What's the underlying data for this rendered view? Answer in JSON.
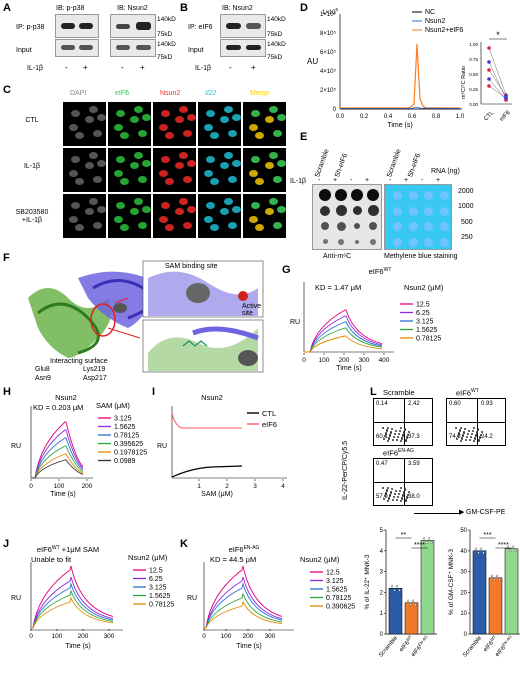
{
  "panels": [
    "A",
    "B",
    "C",
    "D",
    "E",
    "F",
    "G",
    "H",
    "I",
    "J",
    "K",
    "L"
  ],
  "A": {
    "ip1": "IP: p-p38",
    "ib1": "IB: p-p38",
    "ib2": "IB: Nsun2",
    "input": "Input",
    "treat": "IL-1β",
    "minus": "-",
    "plus": "+",
    "mw": [
      "140kD",
      "75kD",
      "140kD",
      "75kD"
    ]
  },
  "B": {
    "ip": "IP: eIF6",
    "ib": "IB: Nsun2",
    "input": "Input",
    "treat": "IL-1β",
    "mw": [
      "140kD",
      "75kD",
      "140kD",
      "75kD"
    ]
  },
  "C": {
    "cols": [
      "DAPI",
      "eIF6",
      "Nsun2",
      "Il22",
      "Merge"
    ],
    "rows": [
      "CTL",
      "IL-1β",
      "SB203580\n+IL-1β"
    ],
    "col_colors": [
      "#9a9a9a",
      "#2ecc40",
      "#ff2a2a",
      "#20c8e0",
      "#ffd200"
    ]
  },
  "D": {
    "ylabel": "AU",
    "xlabel": "Time (s)",
    "legend": [
      "NC",
      "Nsun2",
      "Nsun2+eIF6"
    ],
    "colors": [
      "#000000",
      "#2b6cd6",
      "#ff7a1a"
    ],
    "exp": "1×10",
    "exp_sup": "6",
    "yticks": [
      "0",
      "2×10⁵",
      "4×10⁵",
      "6×10⁵",
      "8×10⁵",
      "1×10⁶"
    ],
    "xticks": [
      "0.0",
      "0.2",
      "0.4",
      "0.6",
      "0.8",
      "1.0"
    ],
    "inset": {
      "ylabel": "m⁶C/⁵C Ratio",
      "xt": [
        "CTL",
        "eIF6"
      ],
      "yt": [
        "0.00",
        "0.25",
        "0.50",
        "0.75",
        "1.00"
      ],
      "star": "*"
    }
  },
  "E": {
    "header1": "Scramble",
    "header2": "Sh-eIF6",
    "header3": "Scramble",
    "header4": "Sh-eIF6",
    "rna": "RNA (ng)",
    "rna_vals": [
      "2000",
      "1000",
      "500",
      "250"
    ],
    "treat": "IL-1β",
    "signs": [
      "-",
      "+",
      "-",
      "+",
      "-",
      "+",
      "-",
      "+"
    ],
    "cap1": "Anti-m⁶C",
    "cap2": "Methylene blue staining"
  },
  "F": {
    "site1": "SAM binding site",
    "site2": "Active\nsite",
    "iface": "Interacting surface",
    "res": [
      "Glu8",
      "Lys219",
      "Asn9",
      "Asp217"
    ]
  },
  "G": {
    "title": "eIF6",
    "title_sup": "WT",
    "kd": "KD = 1.47 μM",
    "conc_title": "Nsun2 (μM)",
    "conc": [
      "12.5",
      "6.25",
      "3.125",
      "1.5625",
      "0.78125"
    ],
    "colors": [
      "#e5007a",
      "#8a2be2",
      "#2b6cd6",
      "#2aa43c",
      "#e08a00"
    ],
    "ylabel": "RU",
    "xlabel": "Time (s)",
    "xt": [
      "0",
      "100",
      "200",
      "300",
      "400"
    ]
  },
  "H": {
    "title": "Nsun2",
    "kd": "KD = 0.203 μM",
    "conc_title": "SAM (μM)",
    "conc": [
      "3.125",
      "1.5625",
      "0.78125",
      "0.395625",
      "0.1978125",
      "0.0989"
    ],
    "colors": [
      "#e5007a",
      "#8a2be2",
      "#2b6cd6",
      "#2aa43c",
      "#e08a00",
      "#333333"
    ],
    "ylabel": "RU",
    "xlabel": "Time (s)",
    "xt": [
      "0",
      "100",
      "200"
    ]
  },
  "I": {
    "title": "Nsun2",
    "legend": [
      "CTL",
      "eIF6"
    ],
    "colors": [
      "#000000",
      "#ff5a5a"
    ],
    "ylabel": "RU",
    "xlabel": "SAM (μM)",
    "xt": [
      "1",
      "2",
      "3",
      "4"
    ]
  },
  "J": {
    "title": "eIF6",
    "title_sup": "WT",
    "title_rest": " +1μM SAM",
    "fit": "Unable to fit",
    "conc_title": "Nsun2 (μM)",
    "conc": [
      "12.5",
      "6.25",
      "3.125",
      "1.5625",
      "0.78125"
    ],
    "colors": [
      "#e5007a",
      "#8a2be2",
      "#2b6cd6",
      "#2aa43c",
      "#e08a00"
    ],
    "ylabel": "RU",
    "xlabel": "Time (s)",
    "xt": [
      "0",
      "100",
      "200",
      "300"
    ]
  },
  "K": {
    "title": "eIF6",
    "title_sup": "EN-AG",
    "kd": "KD = 44.5 μM",
    "conc_title": "Nsun2 (μM)",
    "conc": [
      "12.5",
      "3.125",
      "1.5625",
      "0.78125",
      "0.390625"
    ],
    "colors": [
      "#e5007a",
      "#8a2be2",
      "#2b6cd6",
      "#2aa43c",
      "#e08a00"
    ],
    "ylabel": "RU",
    "xlabel": "Time (s)",
    "xt": [
      "0",
      "100",
      "200",
      "300"
    ]
  },
  "L": {
    "flow": [
      {
        "title": "Scramble",
        "q": [
          "0.14",
          "2.42",
          "60.1",
          "37.3"
        ]
      },
      {
        "title": "eIF6",
        "sup": "WT",
        "q": [
          "0.60",
          "0.93",
          "74.3",
          "24.2"
        ]
      },
      {
        "title": "eIF6",
        "sup": "EN-AG",
        "q": [
          "0.47",
          "3.59",
          "57.9",
          "38.0"
        ]
      }
    ],
    "yaxis": "IL-22-PerCP/Cy5.5",
    "xaxis": "GM-CSF-PE",
    "bar1": {
      "ylabel": "% of IL-22⁺ MNK-3",
      "yt": [
        "0",
        "1",
        "2",
        "3",
        "4",
        "5"
      ],
      "values": [
        2.2,
        1.5,
        4.5
      ],
      "colors": [
        "#2a5ca8",
        "#f07a2a",
        "#8fd98f"
      ],
      "sig": [
        "**",
        "****"
      ]
    },
    "bar2": {
      "ylabel": "% of GM-CSF⁺ MNK-3",
      "yt": [
        "0",
        "10",
        "20",
        "30",
        "40",
        "50"
      ],
      "values": [
        40,
        27,
        41
      ],
      "colors": [
        "#2a5ca8",
        "#f07a2a",
        "#8fd98f"
      ],
      "sig": [
        "***",
        "****"
      ]
    },
    "cats": [
      "Scramble",
      "eIF6",
      "eIF6"
    ],
    "cat_sup": [
      "",
      "WT",
      "EN-AG"
    ]
  }
}
